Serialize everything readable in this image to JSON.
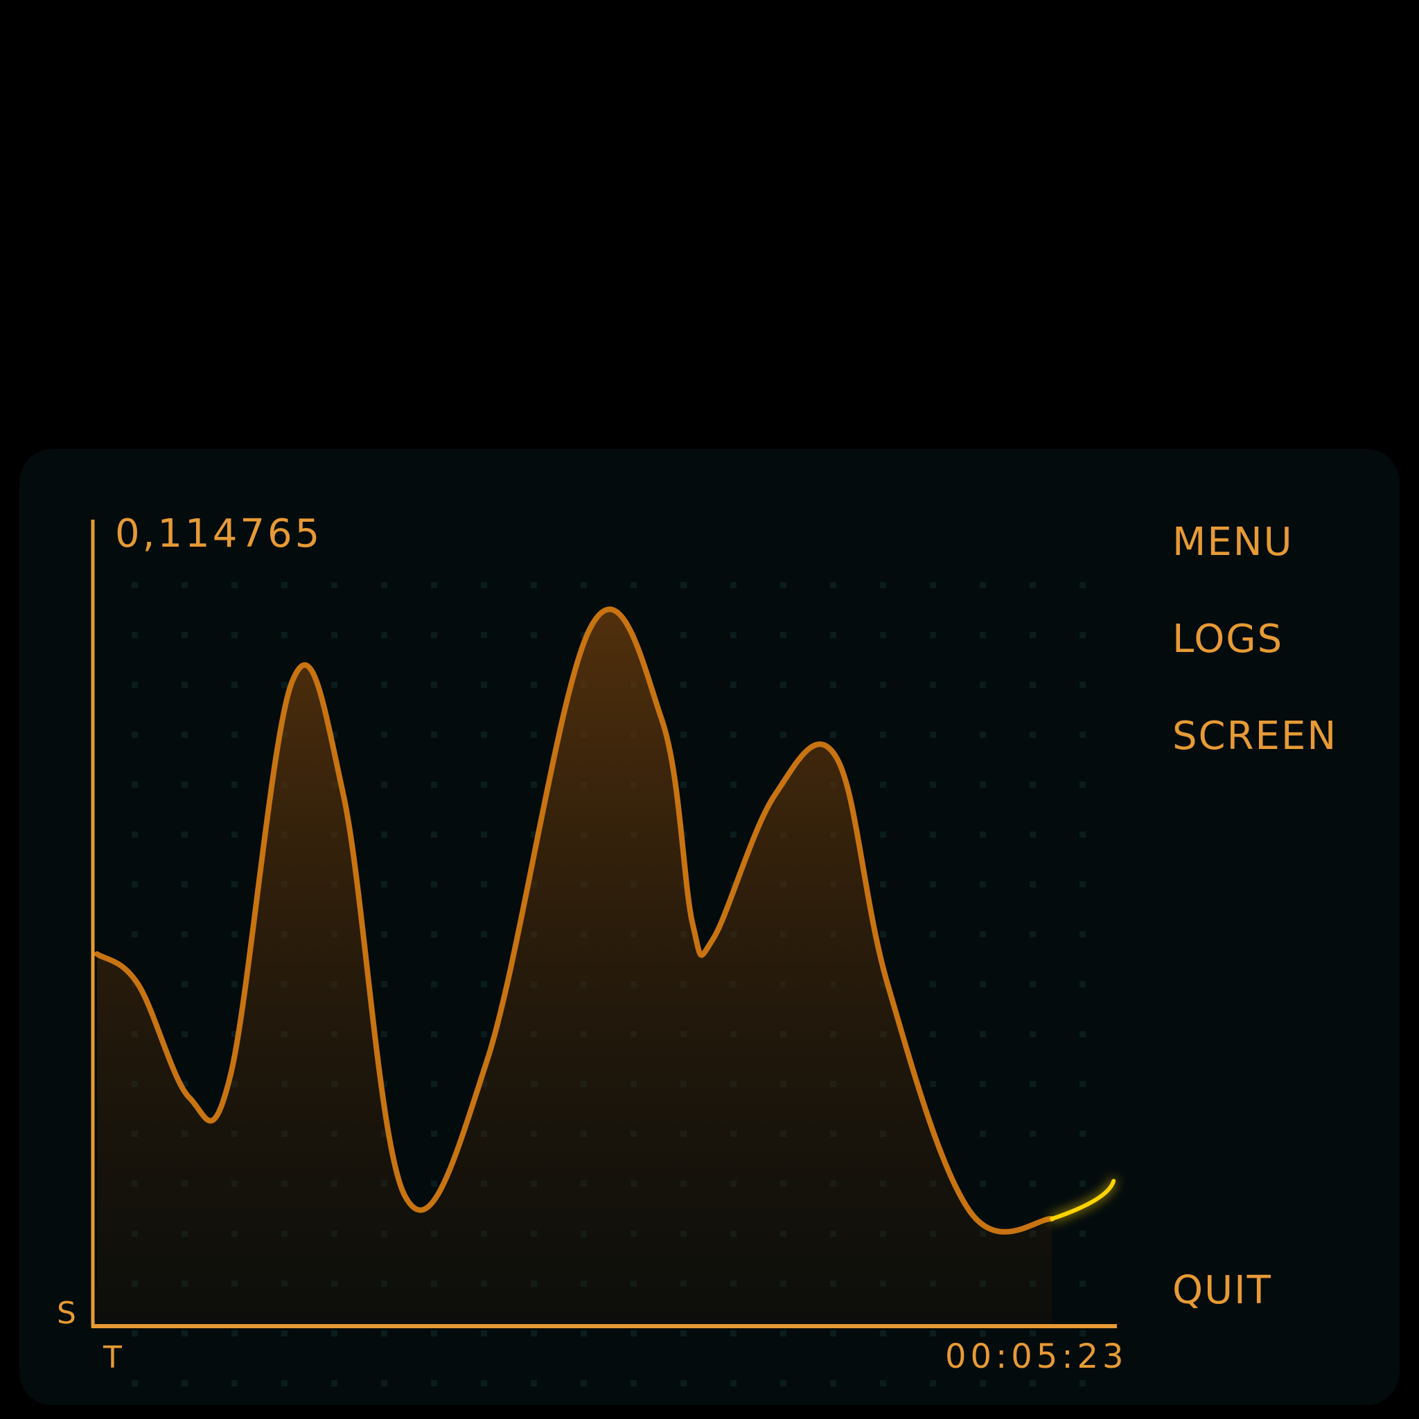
{
  "readout": "0,114765",
  "menu": {
    "items": [
      {
        "label": "MENU",
        "icon": ""
      },
      {
        "label": "LOGS",
        "icon": ""
      },
      {
        "label": "SCREEN",
        "icon": ""
      }
    ],
    "quit_label": "QUIT"
  },
  "chart_data": {
    "type": "area",
    "x": [
      0.0,
      0.04,
      0.09,
      0.13,
      0.19,
      0.24,
      0.3,
      0.38,
      0.48,
      0.55,
      0.58,
      0.6,
      0.66,
      0.72,
      0.77,
      0.85,
      0.93,
      0.99
    ],
    "values": [
      0.49,
      0.45,
      0.3,
      0.33,
      0.85,
      0.7,
      0.17,
      0.35,
      0.92,
      0.8,
      0.53,
      0.51,
      0.7,
      0.75,
      0.45,
      0.15,
      0.14,
      0.19
    ],
    "title": "",
    "xlabel": "T",
    "ylabel": "S",
    "x_end_label": "00:05:23",
    "ylim": [
      0,
      1
    ],
    "grid": "dots",
    "line_color": "#e08a1e",
    "glow_color": "#ffd400"
  },
  "colors": {
    "accent": "#e79a35",
    "background": "#000000",
    "panel": "#030b0c"
  }
}
